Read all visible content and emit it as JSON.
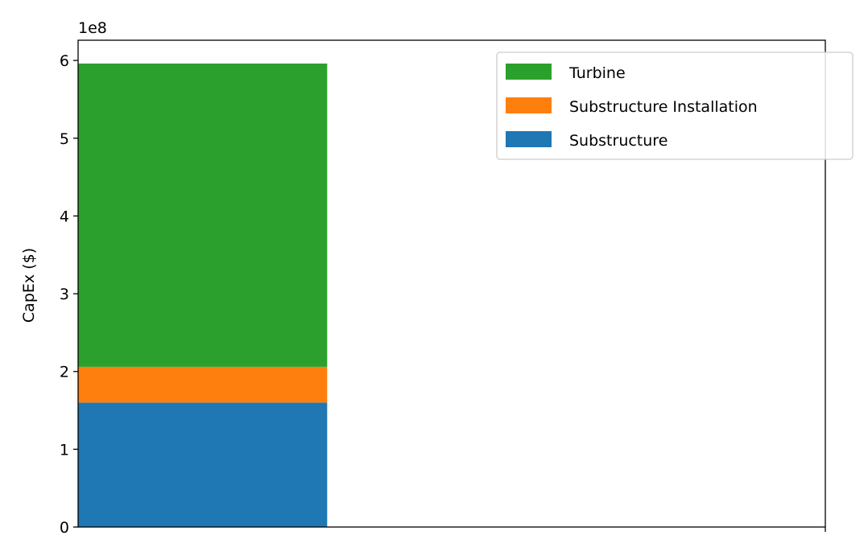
{
  "chart_data": {
    "type": "bar",
    "stacked": true,
    "categories": [
      ""
    ],
    "series": [
      {
        "name": "Substructure",
        "color": "#1f77b4",
        "values": [
          160000000
        ]
      },
      {
        "name": "Substructure Installation",
        "color": "#ff7f0e",
        "values": [
          46000000
        ]
      },
      {
        "name": "Turbine",
        "color": "#2ca02c",
        "values": [
          390000000
        ]
      }
    ],
    "title": "",
    "xlabel": "",
    "ylabel": "CapEx ($)",
    "ylim": [
      0,
      626000000
    ],
    "y_ticks": [
      0,
      100000000,
      200000000,
      300000000,
      400000000,
      500000000,
      600000000
    ],
    "y_tick_labels": [
      "0",
      "1",
      "2",
      "3",
      "4",
      "5",
      "6"
    ],
    "y_offset_label": "1e8",
    "legend": {
      "placement": "top-right",
      "order": [
        "Turbine",
        "Substructure Installation",
        "Substructure"
      ]
    },
    "grid": false
  }
}
